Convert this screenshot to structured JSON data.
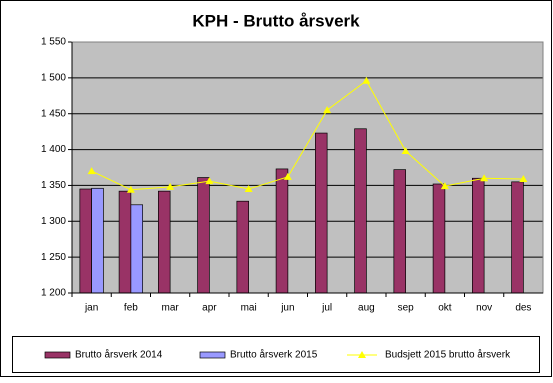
{
  "chart_data": {
    "type": "bar",
    "title": "KPH - Brutto årsverk",
    "categories": [
      "jan",
      "feb",
      "mar",
      "apr",
      "mai",
      "jun",
      "jul",
      "aug",
      "sep",
      "okt",
      "nov",
      "des"
    ],
    "series": [
      {
        "name": "Brutto årsverk 2014",
        "type": "bar",
        "color": "#993366",
        "values": [
          1345,
          1342,
          1342,
          1361,
          1328,
          1373,
          1423,
          1429,
          1372,
          1352,
          1360,
          1355
        ]
      },
      {
        "name": "Brutto årsverk 2015",
        "type": "bar",
        "color": "#9999ff",
        "values": [
          1346,
          1323,
          null,
          null,
          null,
          null,
          null,
          null,
          null,
          null,
          null,
          null
        ]
      },
      {
        "name": "Budsjett 2015 brutto årsverk",
        "type": "line",
        "color": "#ffff00",
        "values": [
          1370,
          1344,
          1348,
          1356,
          1345,
          1362,
          1455,
          1496,
          1398,
          1349,
          1360,
          1359
        ]
      }
    ],
    "ylim": [
      1200,
      1550
    ],
    "yticks": [
      {
        "value": 1200,
        "label": "1 200"
      },
      {
        "value": 1250,
        "label": "1 250"
      },
      {
        "value": 1300,
        "label": "1 300"
      },
      {
        "value": 1350,
        "label": "1 350"
      },
      {
        "value": 1400,
        "label": "1 400"
      },
      {
        "value": 1450,
        "label": "1 450"
      },
      {
        "value": 1500,
        "label": "1 500"
      },
      {
        "value": 1550,
        "label": "1 550"
      }
    ],
    "grid": true,
    "legend": "bottom",
    "plot_background": "#c0c0c0"
  }
}
